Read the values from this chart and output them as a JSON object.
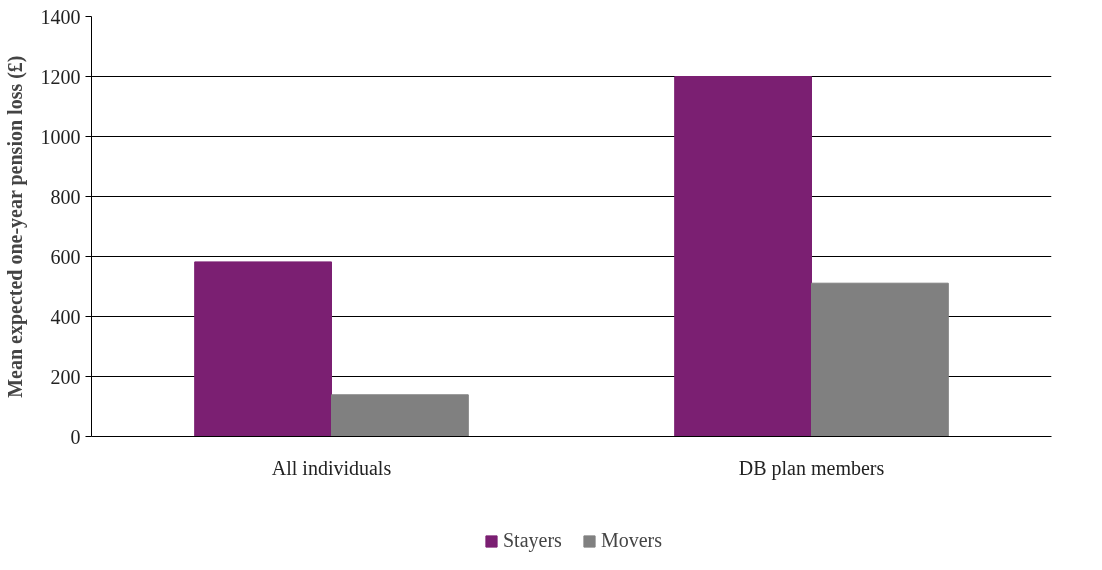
{
  "chart_data": {
    "type": "bar",
    "ylabel": "Mean expected one-year pension loss (£)",
    "categories": [
      "All individuals",
      "DB plan members"
    ],
    "series": [
      {
        "name": "Stayers",
        "color": "#7b1f72",
        "values": [
          582,
          1200
        ]
      },
      {
        "name": "Movers",
        "color": "#808080",
        "values": [
          139,
          511
        ]
      }
    ],
    "ylim": [
      0,
      1400
    ],
    "yticks": [
      0,
      200,
      400,
      600,
      800,
      1000,
      1200,
      1400
    ],
    "grid": "y",
    "legend": "bottom"
  }
}
